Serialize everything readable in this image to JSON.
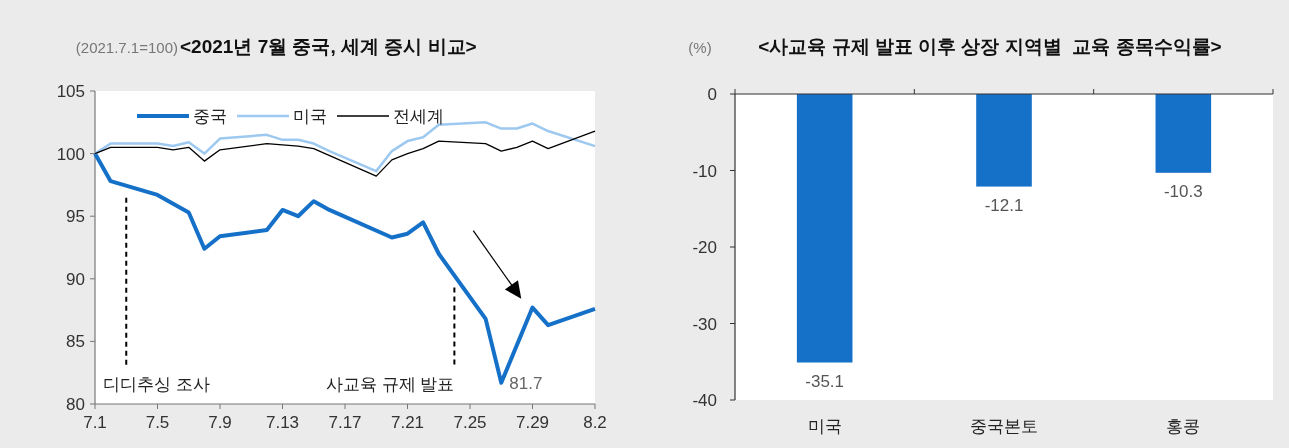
{
  "chart_data": [
    {
      "type": "line",
      "title": "<2021년 7월 중국, 세계 증시 비교>",
      "ylabel": "(2021.7.1=100)",
      "legend": "top",
      "grid": false,
      "marker": "none",
      "line_style": "solid",
      "xlim": [
        "2021-07-01",
        "2021-08-02"
      ],
      "xticks": [
        {
          "value": "2021-07-01",
          "label": "7.1"
        },
        {
          "value": "2021-07-05",
          "label": "7.5"
        },
        {
          "value": "2021-07-09",
          "label": "7.9"
        },
        {
          "value": "2021-07-13",
          "label": "7.13"
        },
        {
          "value": "2021-07-17",
          "label": "7.17"
        },
        {
          "value": "2021-07-21",
          "label": "7.21"
        },
        {
          "value": "2021-07-25",
          "label": "7.25"
        },
        {
          "value": "2021-07-29",
          "label": "7.29"
        },
        {
          "value": "2021-08-02",
          "label": "8.2"
        }
      ],
      "ylim": [
        80,
        105
      ],
      "yticks": [
        80,
        85,
        90,
        95,
        100,
        105
      ],
      "series": [
        {
          "name": "중국",
          "color": "#1570c8",
          "x": [
            "2021-07-01",
            "2021-07-02",
            "2021-07-05",
            "2021-07-06",
            "2021-07-07",
            "2021-07-08",
            "2021-07-09",
            "2021-07-12",
            "2021-07-13",
            "2021-07-14",
            "2021-07-15",
            "2021-07-16",
            "2021-07-20",
            "2021-07-21",
            "2021-07-22",
            "2021-07-23",
            "2021-07-26",
            "2021-07-27",
            "2021-07-29",
            "2021-07-30",
            "2021-08-02"
          ],
          "values": [
            100,
            97.8,
            96.7,
            96.0,
            95.3,
            92.4,
            93.4,
            93.9,
            95.5,
            95.0,
            96.2,
            95.5,
            93.3,
            93.6,
            94.5,
            92.0,
            86.8,
            81.7,
            87.7,
            86.3,
            87.6
          ]
        },
        {
          "name": "미국",
          "color": "#9dc9f0",
          "x": [
            "2021-07-01",
            "2021-07-02",
            "2021-07-05",
            "2021-07-06",
            "2021-07-07",
            "2021-07-08",
            "2021-07-09",
            "2021-07-12",
            "2021-07-13",
            "2021-07-14",
            "2021-07-15",
            "2021-07-16",
            "2021-07-19",
            "2021-07-20",
            "2021-07-21",
            "2021-07-22",
            "2021-07-23",
            "2021-07-26",
            "2021-07-27",
            "2021-07-28",
            "2021-07-29",
            "2021-07-30",
            "2021-08-02"
          ],
          "values": [
            100,
            100.8,
            100.8,
            100.6,
            100.9,
            100.0,
            101.2,
            101.5,
            101.1,
            101.1,
            100.8,
            100.2,
            98.6,
            100.2,
            101.0,
            101.3,
            102.3,
            102.5,
            102.0,
            102.0,
            102.4,
            101.8,
            100.6
          ]
        },
        {
          "name": "전세계",
          "color": "#000000",
          "x": [
            "2021-07-01",
            "2021-07-02",
            "2021-07-05",
            "2021-07-06",
            "2021-07-07",
            "2021-07-08",
            "2021-07-09",
            "2021-07-12",
            "2021-07-14",
            "2021-07-15",
            "2021-07-19",
            "2021-07-20",
            "2021-07-21",
            "2021-07-22",
            "2021-07-23",
            "2021-07-26",
            "2021-07-27",
            "2021-07-28",
            "2021-07-29",
            "2021-07-30",
            "2021-08-02"
          ],
          "values": [
            100,
            100.5,
            100.5,
            100.3,
            100.5,
            99.4,
            100.3,
            100.8,
            100.6,
            100.4,
            98.2,
            99.5,
            100.0,
            100.4,
            101.0,
            100.8,
            100.2,
            100.5,
            101.0,
            100.4,
            101.8
          ]
        }
      ],
      "ref_lines": [
        {
          "axis": "x",
          "value": "2021-07-03",
          "label": "디디추싱 조사",
          "color": "#000000",
          "line_style": "dashed"
        },
        {
          "axis": "x",
          "value": "2021-07-24",
          "label": "사교육 규제 발표",
          "color": "#000000",
          "line_style": "dashed"
        }
      ],
      "annotations": [
        {
          "text": "81.7",
          "x": "2021-07-27",
          "y": 81.7
        }
      ]
    },
    {
      "type": "bar",
      "title": "<사교육 규제 발표 이후 상장 지역별  교육 종목수익률>",
      "ylabel": "(%)",
      "categories": [
        "미국",
        "중국본토",
        "홍콩"
      ],
      "values": [
        -35.1,
        -12.1,
        -10.3
      ],
      "color": "#1570c8",
      "ylim": [
        -40,
        0
      ],
      "yticks": [
        -40,
        -30,
        -20,
        -10,
        0
      ],
      "data_labels": true,
      "grid": false
    }
  ]
}
